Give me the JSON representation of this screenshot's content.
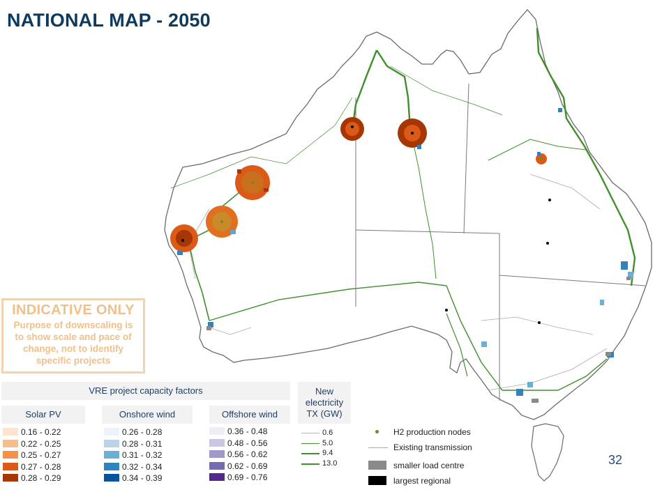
{
  "title": "NATIONAL MAP - 2050",
  "page_number": "32",
  "notice": {
    "heading": "INDICATIVE ONLY",
    "lines": [
      "Purpose of downscaling is",
      "to show scale and pace of",
      "change, not to identify",
      "specific projects"
    ]
  },
  "legend": {
    "title": "VRE project capacity factors",
    "solar": {
      "heading": "Solar PV",
      "items": [
        {
          "label": "0.16 - 0.22",
          "color": "#fde3d0"
        },
        {
          "label": "0.22 - 0.25",
          "color": "#f9bd8c"
        },
        {
          "label": "0.25 - 0.27",
          "color": "#f3914a"
        },
        {
          "label": "0.27 - 0.28",
          "color": "#dc5a17"
        },
        {
          "label": "0.28 - 0.29",
          "color": "#a63603"
        }
      ]
    },
    "onshore": {
      "heading": "Onshore wind",
      "items": [
        {
          "label": "0.26 - 0.28",
          "color": "#eef3fb"
        },
        {
          "label": "0.28 - 0.31",
          "color": "#b9d4e8"
        },
        {
          "label": "0.31 - 0.32",
          "color": "#6baed6"
        },
        {
          "label": "0.32 - 0.34",
          "color": "#3182bd"
        },
        {
          "label": "0.34 - 0.39",
          "color": "#08519c"
        }
      ]
    },
    "offshore": {
      "heading": "Offshore wind",
      "items": [
        {
          "label": "0.36 - 0.48",
          "color": "#efedf5"
        },
        {
          "label": "0.48 - 0.56",
          "color": "#cac7e2"
        },
        {
          "label": "0.56 - 0.62",
          "color": "#9e9ac8"
        },
        {
          "label": "0.62 - 0.69",
          "color": "#756bb1"
        },
        {
          "label": "0.69 - 0.76",
          "color": "#54278f"
        }
      ]
    },
    "transmission": {
      "title_lines": [
        "New",
        "electricity",
        "TX (GW)"
      ],
      "items": [
        {
          "label": "0.6",
          "weight": 0.6
        },
        {
          "label": "5.0",
          "weight": 5.0
        },
        {
          "label": "9.4",
          "weight": 9.4
        },
        {
          "label": "13.0",
          "weight": 13.0
        }
      ]
    },
    "symbols": {
      "h2": "H2 production nodes",
      "existing": "Existing transmission",
      "smaller": "smaller load centre",
      "largest": "largest regional"
    }
  }
}
